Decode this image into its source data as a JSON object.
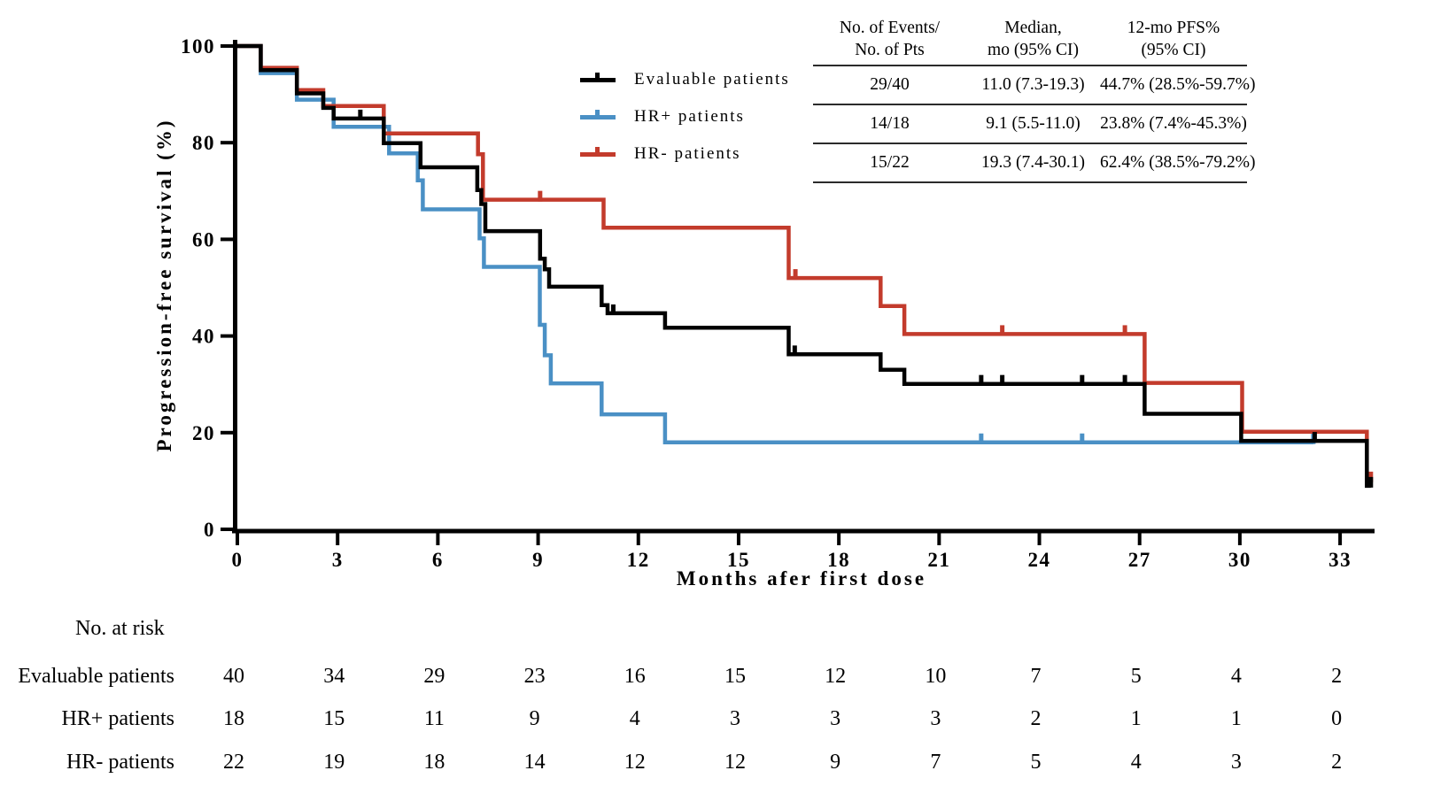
{
  "colors": {
    "evaluable": "#000000",
    "hr_plus": "#4a90c5",
    "hr_minus": "#c33b2c"
  },
  "y_axis": {
    "title": "Progression-free survival (%)",
    "ticks": [
      0,
      20,
      40,
      60,
      80,
      100
    ]
  },
  "x_axis": {
    "title": "Months afer first dose",
    "ticks": [
      0,
      3,
      6,
      9,
      12,
      15,
      18,
      21,
      24,
      27,
      30,
      33
    ]
  },
  "legend": [
    {
      "label": "Evaluable patients",
      "color": "#000000"
    },
    {
      "label": "HR+ patients",
      "color": "#4a90c5"
    },
    {
      "label": "HR- patients",
      "color": "#c33b2c"
    }
  ],
  "stats_table": {
    "col_headers": [
      [
        "No. of Events/",
        "No. of Pts"
      ],
      [
        "Median,",
        "mo (95% CI)"
      ],
      [
        "12-mo PFS%",
        "(95% CI)"
      ]
    ],
    "rows": [
      {
        "group": "Evaluable patients",
        "events": "29/40",
        "median": "11.0 (7.3-19.3)",
        "pfs12": "44.7% (28.5%-59.7%)"
      },
      {
        "group": "HR+ patients",
        "events": "14/18",
        "median": "9.1 (5.5-11.0)",
        "pfs12": "23.8% (7.4%-45.3%)"
      },
      {
        "group": "HR- patients",
        "events": "15/22",
        "median": "19.3 (7.4-30.1)",
        "pfs12": "62.4% (38.5%-79.2%)"
      }
    ]
  },
  "risk_table": {
    "title": "No. at risk",
    "months": [
      0,
      3,
      6,
      9,
      12,
      15,
      18,
      21,
      24,
      27,
      30,
      33
    ],
    "rows": [
      {
        "label": "Evaluable patients",
        "values": [
          40,
          34,
          29,
          23,
          16,
          15,
          12,
          10,
          7,
          5,
          4,
          2
        ]
      },
      {
        "label": "HR+ patients",
        "values": [
          18,
          15,
          11,
          9,
          4,
          3,
          3,
          3,
          2,
          1,
          1,
          0
        ]
      },
      {
        "label": "HR- patients",
        "values": [
          22,
          19,
          18,
          14,
          12,
          12,
          9,
          7,
          5,
          4,
          3,
          2
        ]
      }
    ]
  },
  "chart_data": {
    "type": "line",
    "subtype": "kaplan-meier-step",
    "title": "",
    "xlabel": "Months afer first dose",
    "ylabel": "Progression-free survival (%)",
    "xlim": [
      0,
      34.2
    ],
    "ylim": [
      0,
      100
    ],
    "grid": false,
    "legend_position": "inside-top-right",
    "draw_order": [
      1,
      2,
      0
    ],
    "series": [
      {
        "name": "Evaluable patients",
        "color": "#000000",
        "steps": [
          [
            0,
            100
          ],
          [
            0.7,
            95
          ],
          [
            1.78,
            90.2
          ],
          [
            2.57,
            87.2
          ],
          [
            2.88,
            85
          ],
          [
            4.38,
            79.9
          ],
          [
            5.48,
            74.9
          ],
          [
            7.18,
            70.2
          ],
          [
            7.3,
            67.3
          ],
          [
            7.42,
            61.7
          ],
          [
            9.06,
            56
          ],
          [
            9.2,
            53.8
          ],
          [
            9.33,
            50.2
          ],
          [
            10.9,
            46.4
          ],
          [
            11.08,
            44.7
          ],
          [
            12.8,
            41.7
          ],
          [
            16.5,
            36.2
          ],
          [
            19.25,
            33
          ],
          [
            19.96,
            30.1
          ],
          [
            27.15,
            23.9
          ],
          [
            30.04,
            18.3
          ],
          [
            33.8,
            9
          ]
        ],
        "end": 33.92,
        "censors": [
          [
            3.68,
            85
          ],
          [
            11.25,
            44.7
          ],
          [
            16.68,
            36.2
          ],
          [
            22.26,
            30.1
          ],
          [
            22.89,
            30.1
          ],
          [
            25.28,
            30.1
          ],
          [
            26.56,
            30.1
          ],
          [
            32.24,
            18.3
          ],
          [
            33.92,
            9
          ]
        ]
      },
      {
        "name": "HR+ patients",
        "color": "#4a90c5",
        "steps": [
          [
            0,
            100
          ],
          [
            0.7,
            94.4
          ],
          [
            1.78,
            88.9
          ],
          [
            2.88,
            83.3
          ],
          [
            4.54,
            77.8
          ],
          [
            5.4,
            72.2
          ],
          [
            5.55,
            66.2
          ],
          [
            7.25,
            60.2
          ],
          [
            7.38,
            54.3
          ],
          [
            9.05,
            42.3
          ],
          [
            9.2,
            36
          ],
          [
            9.38,
            30.2
          ],
          [
            10.9,
            23.8
          ],
          [
            12.8,
            18
          ]
        ],
        "end": 32.2,
        "censors": [
          [
            22.26,
            18
          ],
          [
            25.28,
            18
          ],
          [
            32.2,
            18
          ]
        ]
      },
      {
        "name": "HR- patients",
        "color": "#c33b2c",
        "steps": [
          [
            0,
            100
          ],
          [
            0.7,
            95.5
          ],
          [
            1.78,
            90.9
          ],
          [
            2.57,
            87.6
          ],
          [
            4.38,
            81.9
          ],
          [
            7.2,
            77.6
          ],
          [
            7.35,
            68.2
          ],
          [
            10.96,
            62.4
          ],
          [
            16.5,
            52
          ],
          [
            19.25,
            46.2
          ],
          [
            19.96,
            40.4
          ],
          [
            27.15,
            30.3
          ],
          [
            30.07,
            20.2
          ],
          [
            33.8,
            10.1
          ]
        ],
        "end": 33.92,
        "censors": [
          [
            9.06,
            68.2
          ],
          [
            16.7,
            52
          ],
          [
            22.89,
            40.4
          ],
          [
            26.56,
            40.4
          ],
          [
            33.92,
            10.1
          ]
        ]
      }
    ]
  }
}
